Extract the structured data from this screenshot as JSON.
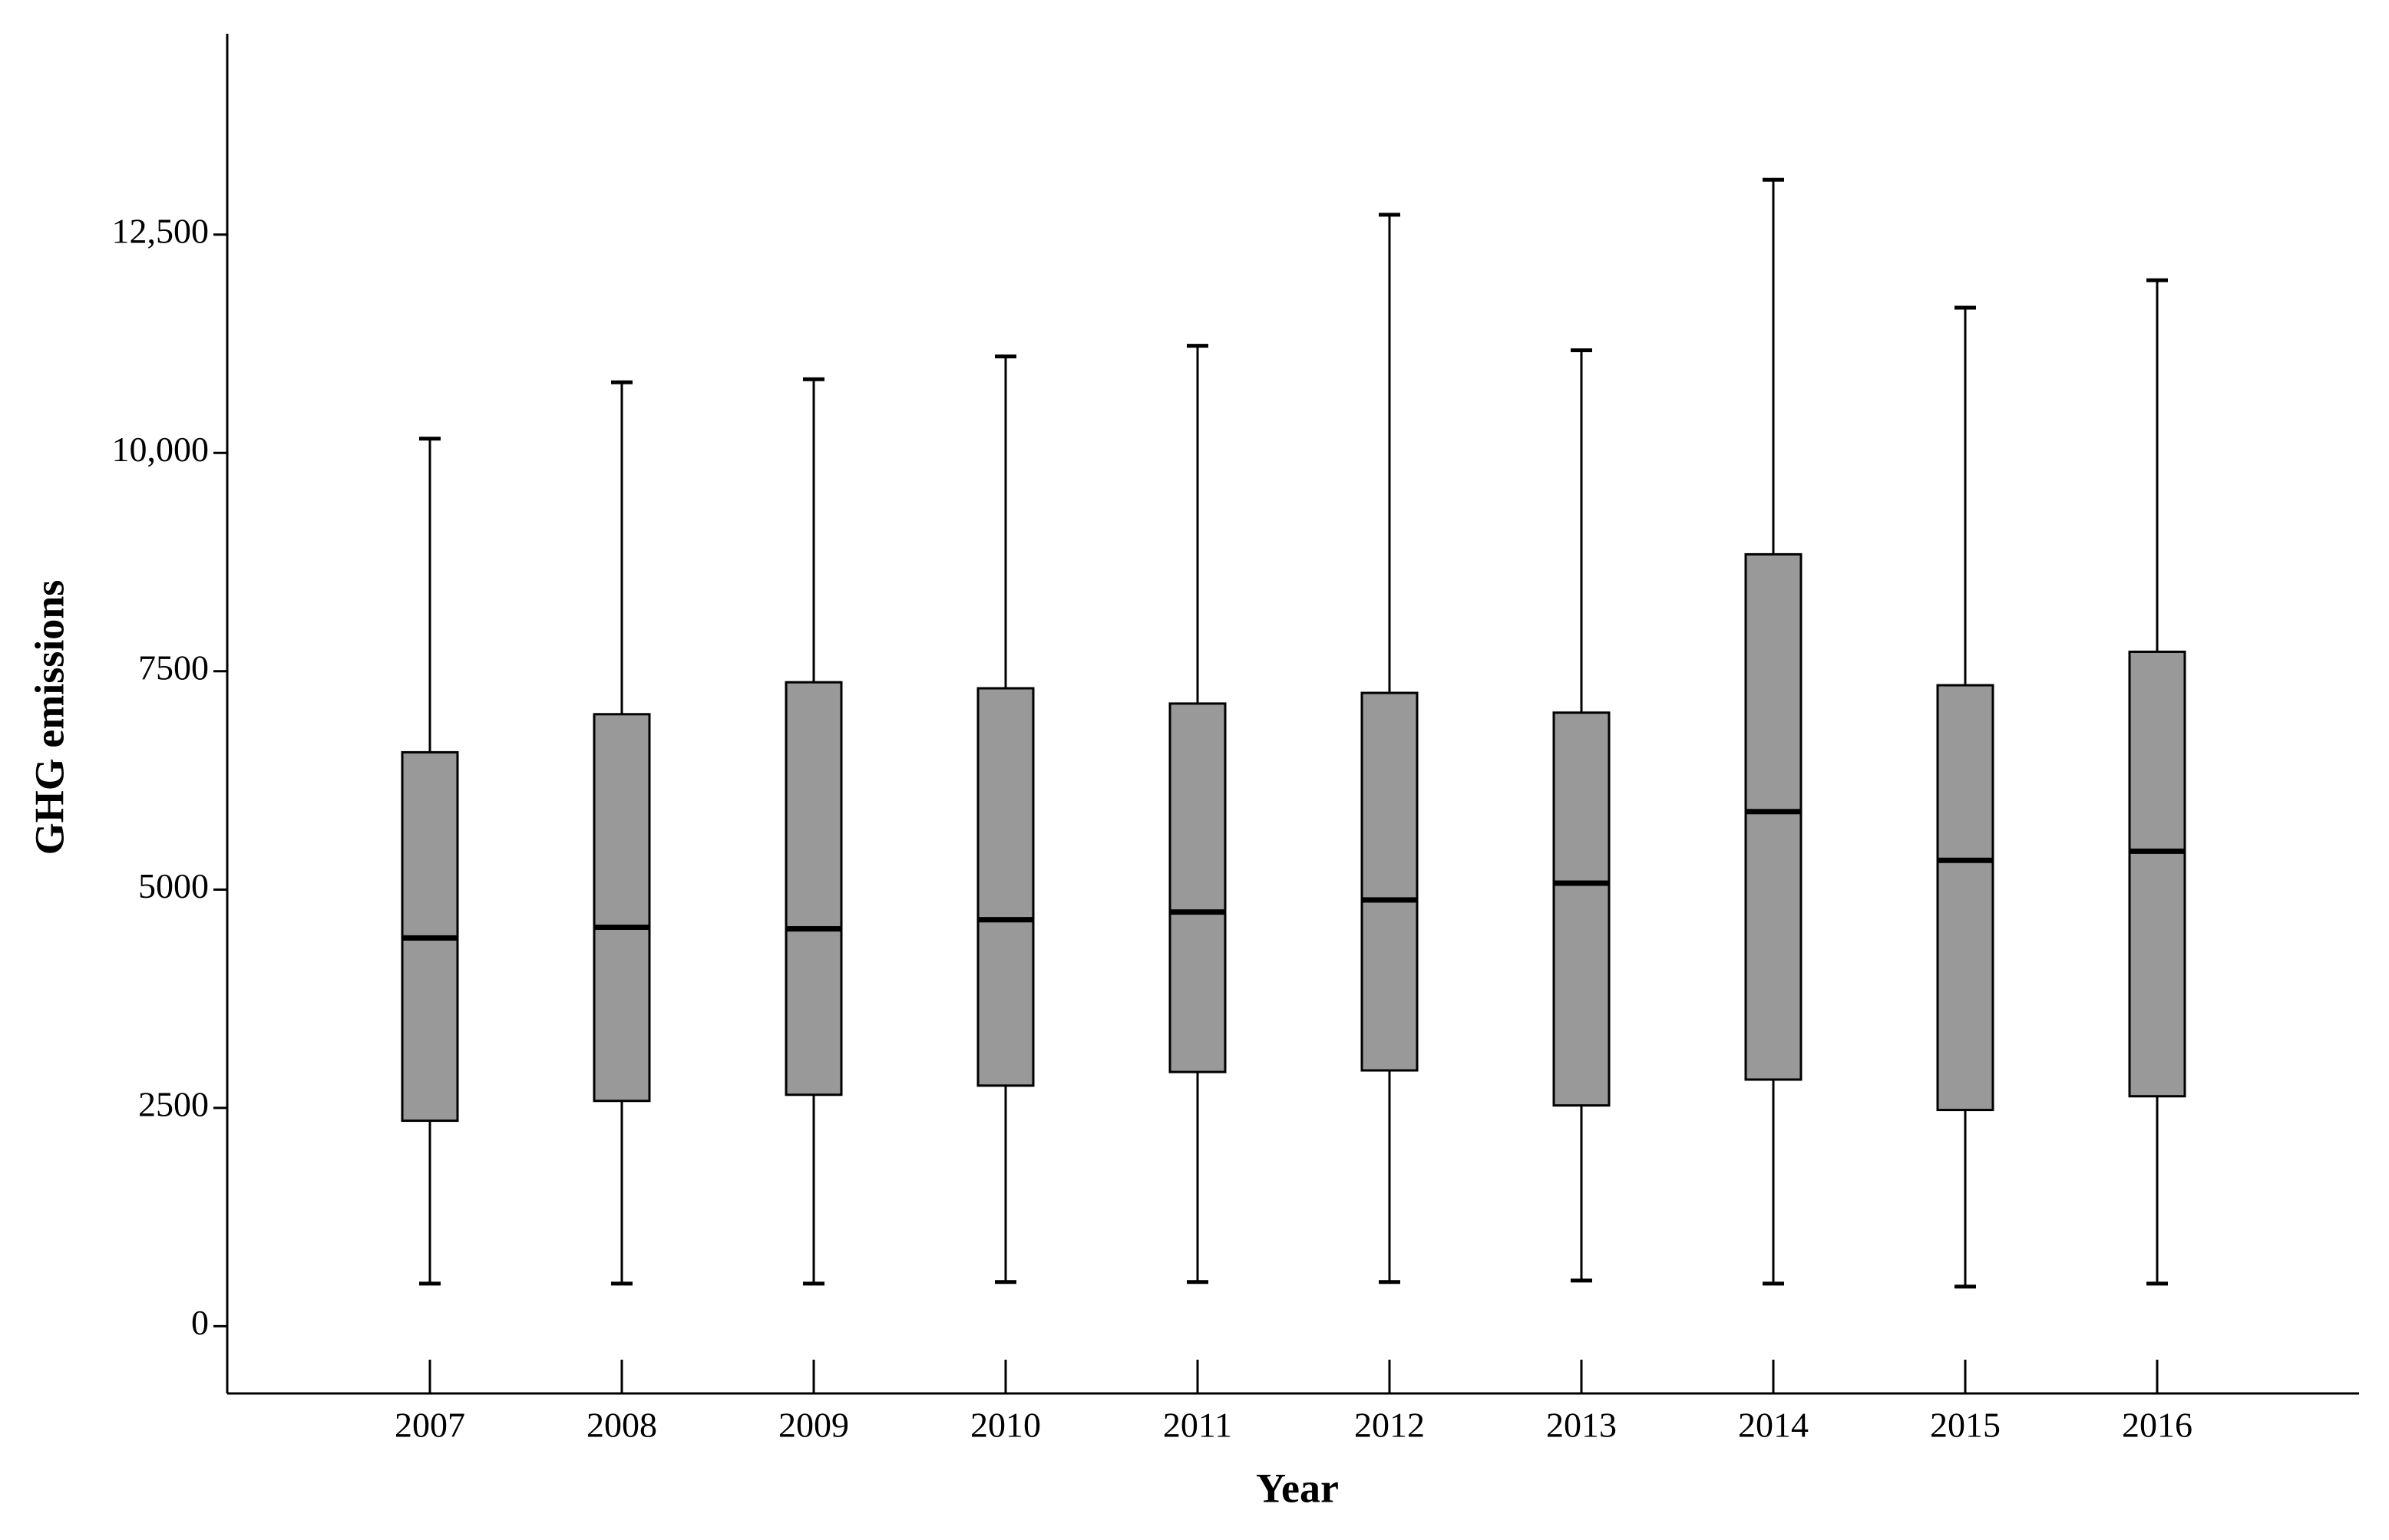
{
  "chart_data": {
    "type": "box",
    "x_label": "Year",
    "y_label": "GHG emissions",
    "categories": [
      "2007",
      "2008",
      "2009",
      "2010",
      "2011",
      "2012",
      "2013",
      "2014",
      "2015",
      "2016"
    ],
    "min": [
      488,
      488,
      488,
      506,
      506,
      506,
      523,
      488,
      453,
      488
    ],
    "q1": [
      2353,
      2580,
      2650,
      2755,
      2911,
      2929,
      2528,
      2824,
      2476,
      2633
    ],
    "median": [
      4446,
      4568,
      4550,
      4655,
      4742,
      4881,
      5073,
      5893,
      5335,
      5439
    ],
    "q3": [
      6572,
      7008,
      7374,
      7305,
      7130,
      7252,
      7026,
      8839,
      7340,
      7723
    ],
    "max": [
      10164,
      10809,
      10844,
      11105,
      11227,
      12727,
      11175,
      13128,
      11663,
      11977
    ],
    "color": "#999999",
    "ylim": [
      -770,
      14800
    ],
    "yticks": [
      0,
      2500,
      5000,
      7500,
      {
        "value": 10000,
        "label": "10,000"
      },
      {
        "value": 12500,
        "label": "12,500"
      }
    ]
  }
}
